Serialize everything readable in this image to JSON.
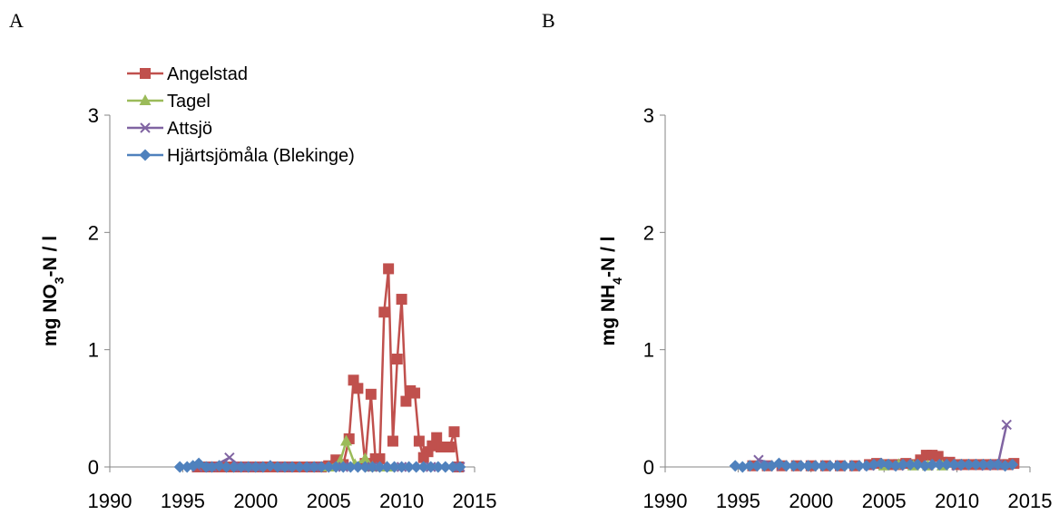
{
  "panels": [
    "A",
    "B"
  ],
  "legend": {
    "angelstad": "Angelstad",
    "tagel": "Tagel",
    "attsjo": "Attsjö",
    "hjartsjomala": "Hjärtsjömåla (Blekinge)"
  },
  "colors": {
    "angelstad": "#c0504d",
    "tagel": "#9bbb59",
    "attsjo": "#8064a2",
    "hjartsjomala": "#4f81bd",
    "axis": "#868686"
  },
  "chart_data": [
    {
      "type": "line",
      "panel": "A",
      "ylabel_parts": [
        "mg NO",
        "3",
        "-N / l"
      ],
      "xlim": [
        1990,
        2015
      ],
      "ylim": [
        0,
        3
      ],
      "xticks": [
        1990,
        1995,
        2000,
        2005,
        2010,
        2015
      ],
      "yticks": [
        0,
        1,
        2,
        3
      ],
      "series": [
        {
          "name": "Angelstad",
          "marker": "square",
          "x": [
            1996.0,
            1996.5,
            1997.0,
            1997.5,
            1998.0,
            1998.5,
            1999.0,
            1999.5,
            2000.0,
            2000.5,
            2001.0,
            2001.5,
            2002.0,
            2002.5,
            2003.0,
            2003.5,
            2004.0,
            2004.5,
            2005.0,
            2005.5,
            2006.0,
            2006.4,
            2006.7,
            2007.0,
            2007.5,
            2007.9,
            2008.2,
            2008.5,
            2008.8,
            2009.1,
            2009.4,
            2009.7,
            2010.0,
            2010.3,
            2010.6,
            2010.9,
            2011.2,
            2011.5,
            2011.8,
            2012.1,
            2012.4,
            2012.7,
            2013.0,
            2013.3,
            2013.6,
            2013.9
          ],
          "y": [
            0,
            0,
            0,
            0,
            0,
            0,
            0,
            0,
            0,
            0,
            0,
            0,
            0,
            0,
            0,
            0,
            0,
            0,
            0.01,
            0.06,
            0.02,
            0.24,
            0.74,
            0.67,
            0.03,
            0.62,
            0.07,
            0.07,
            1.32,
            1.69,
            0.22,
            0.92,
            1.43,
            0.56,
            0.65,
            0.63,
            0.22,
            0.08,
            0.13,
            0.18,
            0.25,
            0.17,
            0.17,
            0.17,
            0.3,
            0.0
          ]
        },
        {
          "name": "Tagel",
          "marker": "triangle",
          "x": [
            2005.0,
            2005.8,
            2006.2,
            2006.8,
            2007.5,
            2008.0,
            2009.0
          ],
          "y": [
            0.0,
            0.05,
            0.22,
            0.02,
            0.07,
            0.0,
            0.0
          ]
        },
        {
          "name": "Attsjö",
          "marker": "x",
          "x": [
            1996.0,
            1997.0,
            1998.2,
            1999.0,
            2000.0,
            2002.0,
            2004.0,
            2006.0,
            2008.0,
            2010.0,
            2012.0,
            2014.0
          ],
          "y": [
            0.0,
            0.0,
            0.08,
            0.0,
            0.0,
            0.0,
            0.0,
            0.0,
            0.0,
            0.0,
            0.0,
            0.0
          ]
        },
        {
          "name": "Hjärtsjömåla (Blekinge)",
          "marker": "diamond",
          "x": [
            1994.8,
            1995.3,
            1995.7,
            1996.1,
            1996.6,
            1997.0,
            1997.5,
            1998.0,
            1998.5,
            1999.0,
            1999.5,
            2000.0,
            2000.5,
            2001.0,
            2001.5,
            2002.0,
            2002.5,
            2003.0,
            2003.5,
            2004.0,
            2004.5,
            2005.0,
            2005.5,
            2006.0,
            2006.5,
            2007.0,
            2007.5,
            2008.0,
            2008.5,
            2009.0,
            2009.5,
            2010.0,
            2010.5,
            2011.0,
            2011.5,
            2012.0,
            2012.5,
            2013.0,
            2013.5,
            2014.0
          ],
          "y": [
            0.0,
            0.0,
            0.01,
            0.03,
            0.0,
            0.0,
            0.01,
            0.0,
            0.0,
            0.0,
            0.0,
            0.0,
            0.0,
            0.01,
            0.0,
            0.0,
            0.0,
            0.0,
            0.0,
            0.0,
            0.0,
            0.0,
            0.0,
            0.0,
            0.0,
            0.0,
            0.0,
            0.0,
            0.0,
            0.0,
            0.0,
            0.0,
            0.0,
            0.0,
            0.0,
            0.0,
            0.0,
            0.0,
            0.0,
            0.0
          ]
        }
      ]
    },
    {
      "type": "line",
      "panel": "B",
      "ylabel_parts": [
        "mg NH",
        "4",
        "-N / l"
      ],
      "xlim": [
        1990,
        2015
      ],
      "ylim": [
        0,
        3
      ],
      "xticks": [
        1990,
        1995,
        2000,
        2005,
        2010,
        2015
      ],
      "yticks": [
        0,
        1,
        2,
        3
      ],
      "series": [
        {
          "name": "Angelstad",
          "marker": "square",
          "x": [
            1996.0,
            1997.0,
            1998.0,
            1999.0,
            2000.0,
            2001.0,
            2002.0,
            2003.0,
            2004.0,
            2004.5,
            2005.0,
            2005.5,
            2006.0,
            2006.5,
            2007.0,
            2007.5,
            2007.9,
            2008.3,
            2008.7,
            2009.0,
            2009.5,
            2010.0,
            2010.5,
            2011.0,
            2011.5,
            2012.0,
            2012.5,
            2013.0,
            2013.5,
            2013.9
          ],
          "y": [
            0.01,
            0.01,
            0.01,
            0.01,
            0.01,
            0.01,
            0.01,
            0.01,
            0.02,
            0.03,
            0.02,
            0.02,
            0.02,
            0.03,
            0.02,
            0.06,
            0.1,
            0.1,
            0.09,
            0.04,
            0.04,
            0.02,
            0.02,
            0.02,
            0.02,
            0.02,
            0.02,
            0.02,
            0.02,
            0.03
          ]
        },
        {
          "name": "Tagel",
          "marker": "triangle",
          "x": [
            2005.0,
            2006.0,
            2007.0,
            2008.0,
            2009.0
          ],
          "y": [
            0.01,
            0.02,
            0.01,
            0.01,
            0.01
          ]
        },
        {
          "name": "Attsjö",
          "marker": "x",
          "x": [
            1996.4,
            1998.0,
            2000.0,
            2002.0,
            2004.0,
            2006.0,
            2008.0,
            2010.0,
            2012.0,
            2012.8,
            2013.4
          ],
          "y": [
            0.06,
            0.01,
            0.01,
            0.01,
            0.01,
            0.01,
            0.01,
            0.01,
            0.01,
            0.02,
            0.36
          ]
        },
        {
          "name": "Hjärtsjömåla (Blekinge)",
          "marker": "diamond",
          "x": [
            1994.8,
            1995.3,
            1995.8,
            1996.3,
            1996.8,
            1997.3,
            1997.8,
            1998.3,
            1998.8,
            1999.3,
            1999.8,
            2000.3,
            2000.8,
            2001.3,
            2001.8,
            2002.3,
            2002.8,
            2003.3,
            2003.8,
            2004.3,
            2004.8,
            2005.3,
            2005.8,
            2006.3,
            2006.8,
            2007.3,
            2007.8,
            2008.3,
            2008.8,
            2009.3,
            2009.8,
            2010.3,
            2010.8,
            2011.3,
            2011.8,
            2012.3,
            2012.8,
            2013.3,
            2013.8
          ],
          "y": [
            0.01,
            0.0,
            0.01,
            0.01,
            0.01,
            0.01,
            0.03,
            0.01,
            0.01,
            0.01,
            0.01,
            0.01,
            0.01,
            0.01,
            0.01,
            0.01,
            0.01,
            0.01,
            0.01,
            0.02,
            0.03,
            0.02,
            0.01,
            0.02,
            0.02,
            0.02,
            0.01,
            0.02,
            0.02,
            0.02,
            0.02,
            0.02,
            0.02,
            0.02,
            0.02,
            0.02,
            0.02,
            0.01,
            0.02
          ]
        }
      ]
    }
  ]
}
